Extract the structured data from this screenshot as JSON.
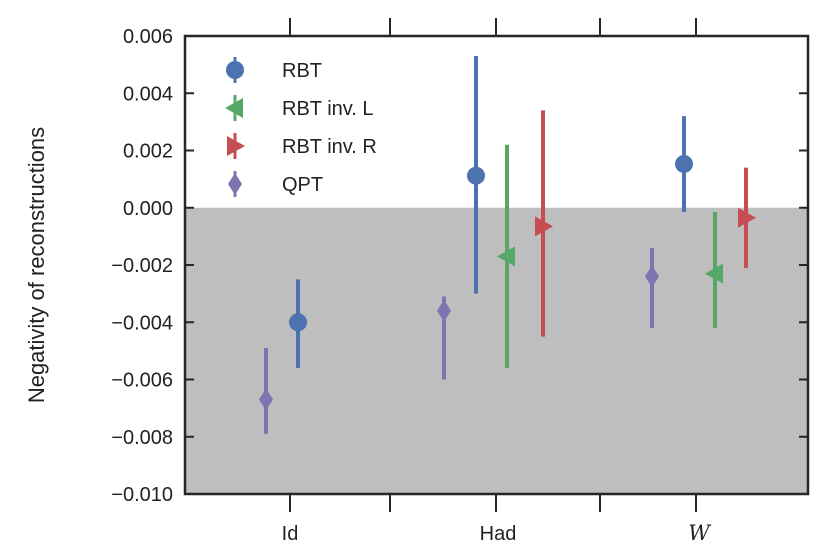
{
  "chart_data": {
    "type": "scatter",
    "title": "",
    "xlabel": "",
    "ylabel": "Negativity of reconstructions",
    "ylim": [
      -0.01,
      0.006
    ],
    "yticks": [
      0.006,
      0.004,
      0.002,
      0.0,
      -0.002,
      -0.004,
      -0.006,
      -0.008,
      -0.01
    ],
    "ytick_labels": [
      "0.006",
      "0.004",
      "0.002",
      "0.000",
      "−0.002",
      "−0.004",
      "−0.006",
      "−0.008",
      "−0.010"
    ],
    "categories": [
      "Id",
      "Had",
      "W"
    ],
    "shaded_region": {
      "from": -0.01,
      "to": 0.0,
      "color": "#bebebe"
    },
    "grid": false,
    "legend_position": "top-left",
    "series": [
      {
        "name": "RBT",
        "color": "#4c72b0",
        "marker": "circle",
        "points": [
          {
            "category": "Id",
            "value": -0.004,
            "err_low": -0.0056,
            "err_high": -0.0025
          },
          {
            "category": "Had",
            "value": 0.00112,
            "err_low": -0.003,
            "err_high": 0.0053
          },
          {
            "category": "W",
            "value": 0.00153,
            "err_low": -0.00015,
            "err_high": 0.0032
          }
        ]
      },
      {
        "name": "RBT inv. L",
        "color": "#55a868",
        "marker": "triangle-left",
        "points": [
          {
            "category": "Had",
            "value": -0.0017,
            "err_low": -0.0056,
            "err_high": 0.0022
          },
          {
            "category": "W",
            "value": -0.0023,
            "err_low": -0.0042,
            "err_high": -0.00015
          }
        ]
      },
      {
        "name": "RBT inv. R",
        "color": "#c44e52",
        "marker": "triangle-right",
        "points": [
          {
            "category": "Had",
            "value": -0.00065,
            "err_low": -0.0045,
            "err_high": 0.0034
          },
          {
            "category": "W",
            "value": -0.00035,
            "err_low": -0.0021,
            "err_high": 0.0014
          }
        ]
      },
      {
        "name": "QPT",
        "color": "#8172b2",
        "marker": "diamond",
        "points": [
          {
            "category": "Id",
            "value": -0.0067,
            "err_low": -0.0079,
            "err_high": -0.0049
          },
          {
            "category": "Had",
            "value": -0.0036,
            "err_low": -0.006,
            "err_high": -0.0031
          },
          {
            "category": "W",
            "value": -0.0024,
            "err_low": -0.0042,
            "err_high": -0.0014
          }
        ]
      }
    ]
  }
}
